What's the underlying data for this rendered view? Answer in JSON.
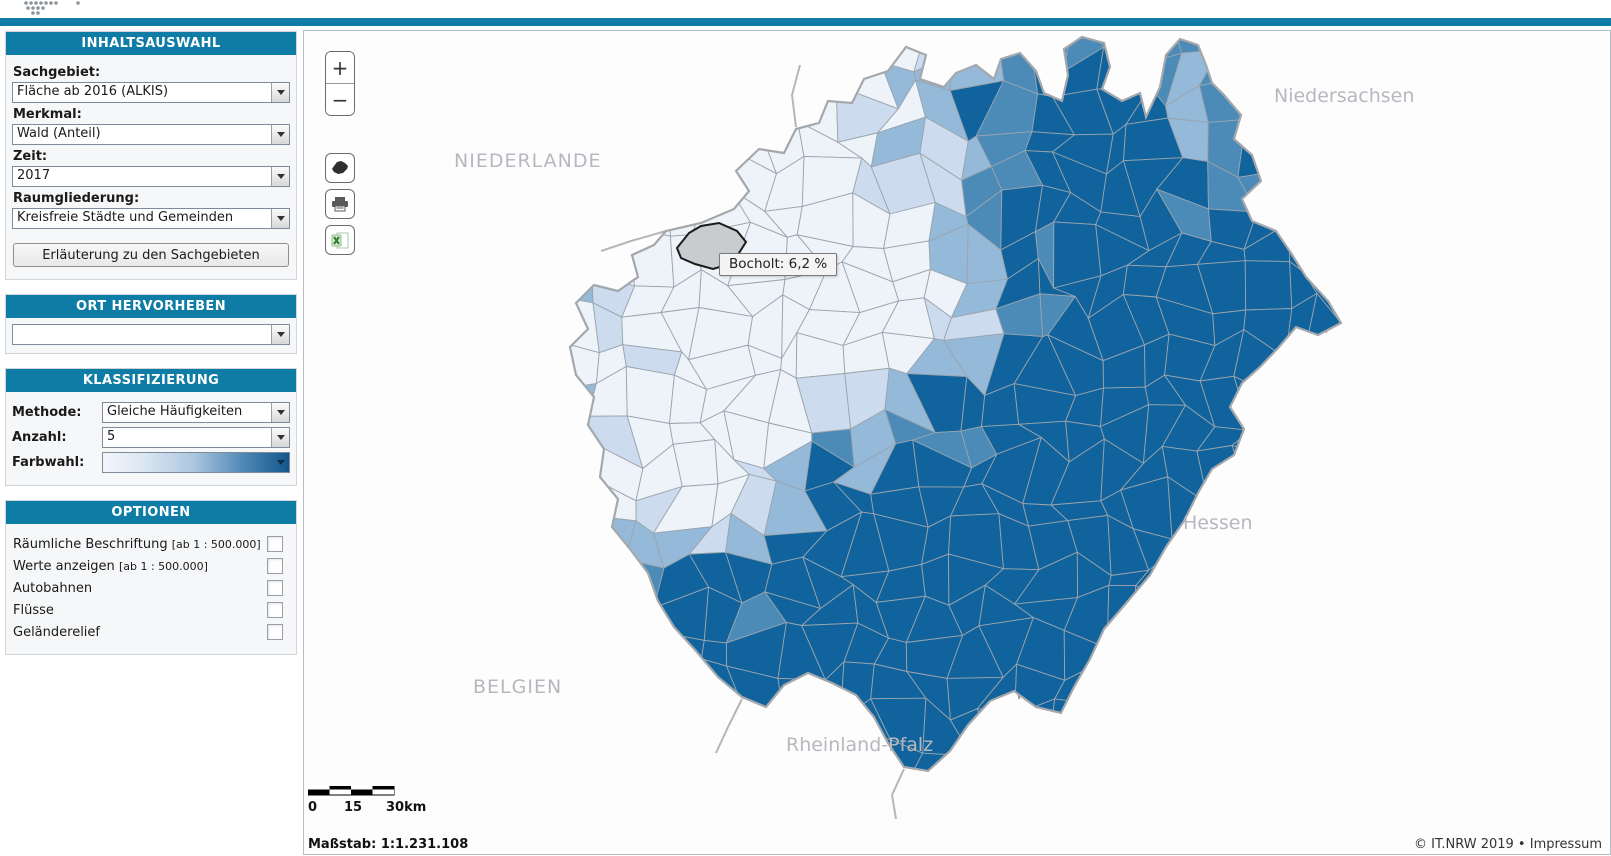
{
  "colors": {
    "accent": "#0f7ca6",
    "palette": [
      "#eef2f9",
      "#ccdcee",
      "#94b9d9",
      "#4c8ab8",
      "#10639c"
    ],
    "hover_fill": "#c9ccce",
    "cell_stroke": "#9aa4ad",
    "state_outline": "#a4a8ac",
    "neighbor_border": "#b6b6b6"
  },
  "sidebar": {
    "inhaltsauswahl": {
      "title": "INHALTSAUSWAHL",
      "fields": [
        {
          "label": "Sachgebiet:",
          "value": "Fläche ab 2016 (ALKIS)"
        },
        {
          "label": "Merkmal:",
          "value": "Wald (Anteil)"
        },
        {
          "label": "Zeit:",
          "value": "2017"
        },
        {
          "label": "Raumgliederung:",
          "value": "Kreisfreie Städte und Gemeinden"
        }
      ],
      "button_label": "Erläuterung zu den Sachgebieten"
    },
    "ort_hervorheben": {
      "title": "ORT HERVORHEBEN",
      "value": ""
    },
    "klassifizierung": {
      "title": "KLASSIFIZIERUNG",
      "rows": [
        {
          "label": "Methode:",
          "value": "Gleiche Häufigkeiten"
        },
        {
          "label": "Anzahl:",
          "value": "5"
        },
        {
          "label": "Farbwahl:",
          "value": ""
        }
      ]
    },
    "optionen": {
      "title": "OPTIONEN",
      "items": [
        {
          "label": "Räumliche Beschriftung",
          "suffix": "[ab 1 : 500.000]",
          "checked": false
        },
        {
          "label": "Werte anzeigen",
          "suffix": "[ab 1 : 500.000]",
          "checked": false
        },
        {
          "label": "Autobahnen",
          "suffix": "",
          "checked": false
        },
        {
          "label": "Flüsse",
          "suffix": "",
          "checked": false
        },
        {
          "label": "Geländerelief",
          "suffix": "",
          "checked": false
        }
      ]
    }
  },
  "map": {
    "controls": {
      "zoom_in": "+",
      "zoom_out": "−"
    },
    "tooltip": "Bocholt: 6,2 %",
    "hovered": {
      "name": "Bocholt",
      "value": "6,2 %"
    },
    "region_labels": {
      "niederlande": "NIEDERLANDE",
      "niedersachsen": "Niedersachsen",
      "belgien": "BELGIEN",
      "hessen": "Hessen",
      "rheinland_pfalz": "Rheinland-Pfalz"
    },
    "scalebar": {
      "start": "0",
      "mid": "15",
      "end": "30km"
    },
    "scale_text": "Maßstab: 1:1.231.108",
    "copyright_prefix": "© IT.NRW 2019 • ",
    "impressum_label": "Impressum"
  }
}
